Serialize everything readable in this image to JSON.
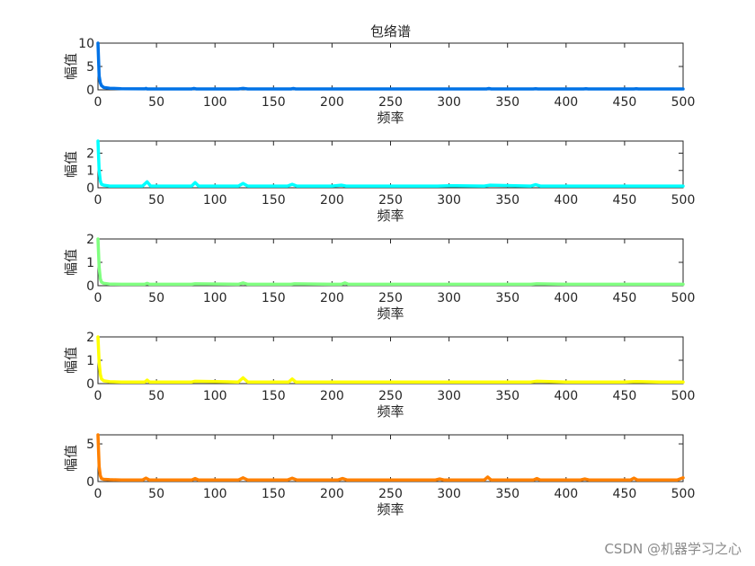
{
  "figure": {
    "watermark": "CSDN @机器学习之心"
  },
  "chart_data": [
    {
      "type": "line",
      "title": "包络谱",
      "xlabel": "频率",
      "ylabel": "幅值",
      "xlim": [
        0,
        500
      ],
      "ylim": [
        0,
        10
      ],
      "xticks": [
        0,
        50,
        100,
        150,
        200,
        250,
        300,
        350,
        400,
        450,
        500
      ],
      "yticks": [
        0,
        5,
        10
      ],
      "color": "#0072e6",
      "series": [
        {
          "x": [
            0,
            1,
            2,
            3,
            5,
            10,
            20,
            40,
            41,
            42,
            80,
            82,
            84,
            120,
            124,
            128,
            165,
            167,
            169,
            200,
            210,
            250,
            290,
            300,
            332,
            334,
            336,
            372,
            374,
            376,
            400,
            415,
            417,
            419,
            450,
            458,
            460,
            462,
            480,
            500
          ],
          "y": [
            10,
            3,
            1.5,
            0.9,
            0.5,
            0.35,
            0.25,
            0.22,
            0.3,
            0.2,
            0.2,
            0.3,
            0.2,
            0.2,
            0.3,
            0.2,
            0.2,
            0.28,
            0.2,
            0.2,
            0.2,
            0.2,
            0.2,
            0.2,
            0.2,
            0.28,
            0.2,
            0.2,
            0.25,
            0.2,
            0.2,
            0.2,
            0.25,
            0.2,
            0.2,
            0.2,
            0.25,
            0.2,
            0.2,
            0.2
          ]
        }
      ]
    },
    {
      "type": "line",
      "title": "",
      "xlabel": "频率",
      "ylabel": "幅值",
      "xlim": [
        0,
        500
      ],
      "ylim": [
        0,
        2.7
      ],
      "xticks": [
        0,
        50,
        100,
        150,
        200,
        250,
        300,
        350,
        400,
        450,
        500
      ],
      "yticks": [
        0,
        1,
        2
      ],
      "color": "#00ffff",
      "series": [
        {
          "x": [
            0,
            1,
            2,
            3,
            5,
            10,
            20,
            38,
            42,
            45,
            80,
            83,
            86,
            120,
            124,
            128,
            162,
            166,
            170,
            200,
            208,
            212,
            250,
            290,
            300,
            330,
            335,
            370,
            374,
            378,
            400,
            420,
            450,
            480,
            500
          ],
          "y": [
            2.7,
            1.0,
            0.4,
            0.2,
            0.15,
            0.1,
            0.1,
            0.1,
            0.35,
            0.1,
            0.1,
            0.3,
            0.1,
            0.1,
            0.25,
            0.1,
            0.1,
            0.2,
            0.1,
            0.1,
            0.15,
            0.1,
            0.1,
            0.1,
            0.12,
            0.1,
            0.15,
            0.1,
            0.18,
            0.1,
            0.1,
            0.1,
            0.1,
            0.1,
            0.1
          ]
        }
      ]
    },
    {
      "type": "line",
      "title": "",
      "xlabel": "频率",
      "ylabel": "幅值",
      "xlim": [
        0,
        500
      ],
      "ylim": [
        0,
        2
      ],
      "xticks": [
        0,
        50,
        100,
        150,
        200,
        250,
        300,
        350,
        400,
        450,
        500
      ],
      "yticks": [
        0,
        1,
        2
      ],
      "color": "#80ff80",
      "series": [
        {
          "x": [
            0,
            1,
            2,
            3,
            5,
            10,
            20,
            40,
            42,
            44,
            80,
            83,
            120,
            124,
            128,
            165,
            168,
            200,
            208,
            211,
            214,
            250,
            290,
            300,
            330,
            370,
            375,
            400,
            420,
            450,
            480,
            500
          ],
          "y": [
            2.0,
            0.8,
            0.3,
            0.15,
            0.1,
            0.07,
            0.06,
            0.06,
            0.1,
            0.06,
            0.06,
            0.08,
            0.06,
            0.12,
            0.06,
            0.06,
            0.08,
            0.06,
            0.06,
            0.12,
            0.06,
            0.06,
            0.06,
            0.06,
            0.06,
            0.06,
            0.08,
            0.06,
            0.06,
            0.06,
            0.06,
            0.06
          ]
        }
      ]
    },
    {
      "type": "line",
      "title": "",
      "xlabel": "频率",
      "ylabel": "幅值",
      "xlim": [
        0,
        500
      ],
      "ylim": [
        0,
        2
      ],
      "xticks": [
        0,
        50,
        100,
        150,
        200,
        250,
        300,
        350,
        400,
        450,
        500
      ],
      "yticks": [
        0,
        1,
        2
      ],
      "color": "#ffff00",
      "series": [
        {
          "x": [
            0,
            1,
            2,
            3,
            5,
            10,
            20,
            40,
            42,
            44,
            80,
            83,
            120,
            124,
            128,
            163,
            166,
            169,
            200,
            250,
            290,
            300,
            330,
            370,
            375,
            400,
            420,
            450,
            460,
            480,
            500
          ],
          "y": [
            2.0,
            0.9,
            0.4,
            0.2,
            0.12,
            0.08,
            0.07,
            0.07,
            0.15,
            0.07,
            0.07,
            0.1,
            0.07,
            0.25,
            0.07,
            0.07,
            0.2,
            0.07,
            0.07,
            0.07,
            0.07,
            0.07,
            0.07,
            0.07,
            0.1,
            0.07,
            0.07,
            0.07,
            0.09,
            0.07,
            0.07
          ]
        }
      ]
    },
    {
      "type": "line",
      "title": "",
      "xlabel": "频率",
      "ylabel": "幅值",
      "xlim": [
        0,
        500
      ],
      "ylim": [
        0,
        6.2
      ],
      "xticks": [
        0,
        50,
        100,
        150,
        200,
        250,
        300,
        350,
        400,
        450,
        500
      ],
      "yticks": [
        0,
        5
      ],
      "color": "#ff8000",
      "series": [
        {
          "x": [
            0,
            1,
            2,
            3,
            5,
            10,
            20,
            38,
            41,
            44,
            80,
            83,
            86,
            120,
            124,
            128,
            162,
            166,
            170,
            205,
            209,
            213,
            250,
            288,
            292,
            296,
            330,
            333,
            336,
            372,
            375,
            378,
            412,
            416,
            420,
            455,
            458,
            461,
            495,
            500
          ],
          "y": [
            6.2,
            2.0,
            0.8,
            0.4,
            0.3,
            0.25,
            0.2,
            0.2,
            0.45,
            0.2,
            0.2,
            0.4,
            0.2,
            0.2,
            0.5,
            0.2,
            0.2,
            0.45,
            0.2,
            0.2,
            0.4,
            0.2,
            0.2,
            0.2,
            0.35,
            0.2,
            0.2,
            0.6,
            0.2,
            0.2,
            0.4,
            0.2,
            0.2,
            0.35,
            0.2,
            0.2,
            0.45,
            0.2,
            0.2,
            0.5
          ]
        }
      ]
    }
  ]
}
